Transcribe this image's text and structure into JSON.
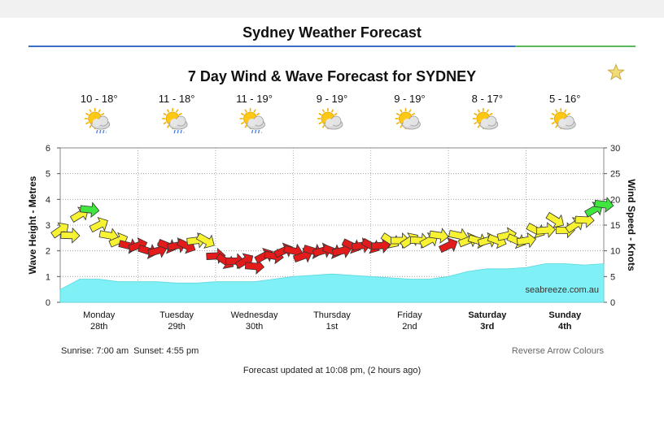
{
  "page": {
    "title": "Sydney Weather Forecast",
    "chart_title": "7 Day Wind & Wave Forecast for SYDNEY",
    "watermark": "seabreeze.com.au",
    "sunrise": "Sunrise: 7:00 am",
    "sunset": "Sunset: 4:55 pm",
    "reverse_arrows": "Reverse Arrow Colours",
    "updated": "Forecast updated at 10:08 pm, (2 hours ago)",
    "favourite_icon": "star-icon"
  },
  "colors": {
    "wave_fill": "#7ff0f5",
    "wind_low": "#f7f232",
    "wind_mid": "#e31b1b",
    "wind_high": "#3ee63e",
    "header_rule_blue": "#3a6fc4",
    "header_rule_green": "#5cb85c"
  },
  "chart_data": {
    "type": "line",
    "left_axis": {
      "label": "Wave Height - Metres",
      "range": [
        0,
        6
      ],
      "ticks": [
        "0",
        "1",
        "2",
        "3",
        "4",
        "5",
        "6"
      ]
    },
    "right_axis": {
      "label": "Wind Speed - Knots",
      "range": [
        0,
        30
      ],
      "ticks": [
        "0",
        "5",
        "10",
        "15",
        "20",
        "25",
        "30"
      ]
    },
    "grid": true,
    "days": [
      {
        "name": "Monday",
        "date": "28th",
        "temp": "10 - 18°",
        "icon": "cloudy-rain-icon",
        "bold": false
      },
      {
        "name": "Tuesday",
        "date": "29th",
        "temp": "11 - 18°",
        "icon": "cloudy-rain-icon",
        "bold": false
      },
      {
        "name": "Wednesday",
        "date": "30th",
        "temp": "11 - 19°",
        "icon": "cloudy-rain-icon",
        "bold": false
      },
      {
        "name": "Thursday",
        "date": "1st",
        "temp": "9 - 19°",
        "icon": "partly-cloudy-icon",
        "bold": false
      },
      {
        "name": "Friday",
        "date": "2nd",
        "temp": "9 - 19°",
        "icon": "partly-cloudy-icon",
        "bold": false
      },
      {
        "name": "Saturday",
        "date": "3rd",
        "temp": "8 - 17°",
        "icon": "partly-cloudy-icon",
        "bold": true
      },
      {
        "name": "Sunday",
        "date": "4th",
        "temp": "5 - 16°",
        "icon": "partly-cloudy-icon",
        "bold": true
      }
    ],
    "wave_height": {
      "unit": "m",
      "hours": [
        0,
        6,
        12,
        18,
        24,
        30,
        36,
        42,
        48,
        54,
        60,
        66,
        72,
        78,
        84,
        90,
        96,
        102,
        108,
        114,
        120,
        126,
        132,
        138,
        144,
        150,
        156,
        162,
        168
      ],
      "values": [
        0.5,
        0.9,
        0.9,
        0.8,
        0.8,
        0.8,
        0.75,
        0.75,
        0.8,
        0.8,
        0.8,
        0.9,
        1.0,
        1.05,
        1.1,
        1.05,
        1.0,
        0.95,
        0.9,
        0.9,
        1.0,
        1.2,
        1.3,
        1.3,
        1.35,
        1.5,
        1.5,
        1.45,
        1.5
      ]
    },
    "wind_speed": {
      "unit": "knots",
      "hours": [
        0,
        3,
        6,
        9,
        12,
        15,
        18,
        21,
        24,
        27,
        30,
        33,
        36,
        39,
        42,
        45,
        48,
        51,
        54,
        57,
        60,
        63,
        66,
        69,
        72,
        75,
        78,
        81,
        84,
        87,
        90,
        93,
        96,
        99,
        102,
        105,
        108,
        111,
        114,
        117,
        120,
        123,
        126,
        129,
        132,
        135,
        138,
        141,
        144,
        147,
        150,
        153,
        156,
        159,
        162,
        165,
        168
      ],
      "values": [
        14,
        13,
        17,
        18,
        15,
        13,
        12,
        11,
        11,
        10,
        10,
        11,
        11,
        11,
        12,
        12,
        9,
        8,
        8,
        8,
        7,
        9,
        9,
        10,
        10,
        9,
        10,
        10,
        10,
        10,
        11,
        11,
        11,
        11,
        12,
        12,
        12,
        12,
        12,
        13,
        11,
        13,
        12,
        12,
        12,
        12,
        13,
        12,
        12,
        14,
        14,
        16,
        14,
        15,
        16,
        18,
        19
      ]
    }
  }
}
